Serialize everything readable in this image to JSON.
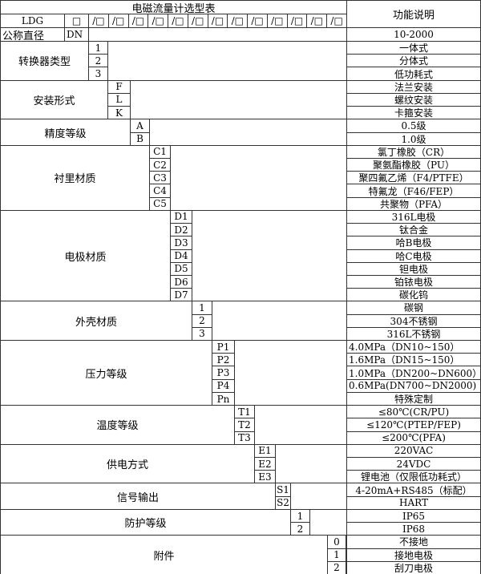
{
  "title": "电磁流量计选型表",
  "function_header": "功能说明",
  "model_prefix": "LDG",
  "model_first_slot": "□",
  "model_slots": [
    "/□",
    "/□",
    "/□",
    "/□",
    "/□",
    "/□",
    "/□",
    "/□",
    "/□",
    "/□",
    "/□",
    "/□",
    "/□"
  ],
  "nominal_diameter": {
    "label": "公称直径",
    "code": "DN",
    "desc": "10-2000"
  },
  "groups": [
    {
      "label": "转换器类型",
      "options": [
        {
          "code": "1",
          "desc": "一体式"
        },
        {
          "code": "2",
          "desc": "分体式"
        },
        {
          "code": "3",
          "desc": "低功耗式"
        }
      ]
    },
    {
      "label": "安装形式",
      "options": [
        {
          "code": "F",
          "desc": "法兰安装"
        },
        {
          "code": "L",
          "desc": "螺纹安装"
        },
        {
          "code": "K",
          "desc": "卡箍安装"
        }
      ]
    },
    {
      "label": "精度等级",
      "options": [
        {
          "code": "A",
          "desc": "0.5级"
        },
        {
          "code": "B",
          "desc": "1.0级"
        }
      ]
    },
    {
      "label": "衬里材质",
      "options": [
        {
          "code": "C1",
          "desc": "氯丁橡胶（CR）"
        },
        {
          "code": "C2",
          "desc": "聚氨酯橡胶（PU）"
        },
        {
          "code": "C3",
          "desc": "聚四氟乙烯（F4/PTFE）"
        },
        {
          "code": "C4",
          "desc": "特氟龙（F46/FEP）"
        },
        {
          "code": "C5",
          "desc": "共聚物（PFA）"
        }
      ]
    },
    {
      "label": "电极材质",
      "options": [
        {
          "code": "D1",
          "desc": "316L电极"
        },
        {
          "code": "D2",
          "desc": "钛合金"
        },
        {
          "code": "D3",
          "desc": "哈B电极"
        },
        {
          "code": "D4",
          "desc": "哈C电极"
        },
        {
          "code": "D5",
          "desc": "钽电极"
        },
        {
          "code": "D6",
          "desc": "铂铱电极"
        },
        {
          "code": "D7",
          "desc": "碳化钨"
        }
      ]
    },
    {
      "label": "外壳材质",
      "options": [
        {
          "code": "1",
          "desc": "碳钢"
        },
        {
          "code": "2",
          "desc": "304不锈钢"
        },
        {
          "code": "3",
          "desc": "316L不锈钢"
        }
      ]
    },
    {
      "label": "压力等级",
      "options": [
        {
          "code": "P1",
          "desc": "4.0MPa（DN10~150）"
        },
        {
          "code": "P2",
          "desc": "1.6MPa（DN15~150）"
        },
        {
          "code": "P3",
          "desc": "1.0MPa（DN200~DN600）"
        },
        {
          "code": "P4",
          "desc": "0.6MPa(DN700~DN2000)"
        },
        {
          "code": "Pn",
          "desc": "特殊定制"
        }
      ]
    },
    {
      "label": "温度等级",
      "options": [
        {
          "code": "T1",
          "desc": "≤80℃(CR/PU)"
        },
        {
          "code": "T2",
          "desc": "≤120℃(PTEP/FEP)"
        },
        {
          "code": "T3",
          "desc": "≤200℃(PFA)"
        }
      ]
    },
    {
      "label": "供电方式",
      "options": [
        {
          "code": "E1",
          "desc": "220VAC"
        },
        {
          "code": "E2",
          "desc": "24VDC"
        },
        {
          "code": "E3",
          "desc": "锂电池（仅限低功耗式）"
        }
      ]
    },
    {
      "label": "信号输出",
      "options": [
        {
          "code": "S1",
          "desc": "4-20mA+RS485（标配）"
        },
        {
          "code": "S2",
          "desc": "HART"
        }
      ]
    },
    {
      "label": "防护等级",
      "options": [
        {
          "code": "1",
          "desc": "IP65"
        },
        {
          "code": "2",
          "desc": "IP68"
        }
      ]
    },
    {
      "label": "附件",
      "options": [
        {
          "code": "0",
          "desc": "不接地"
        },
        {
          "code": "1",
          "desc": "接地电极"
        },
        {
          "code": "2",
          "desc": "刮刀电极"
        }
      ]
    }
  ]
}
